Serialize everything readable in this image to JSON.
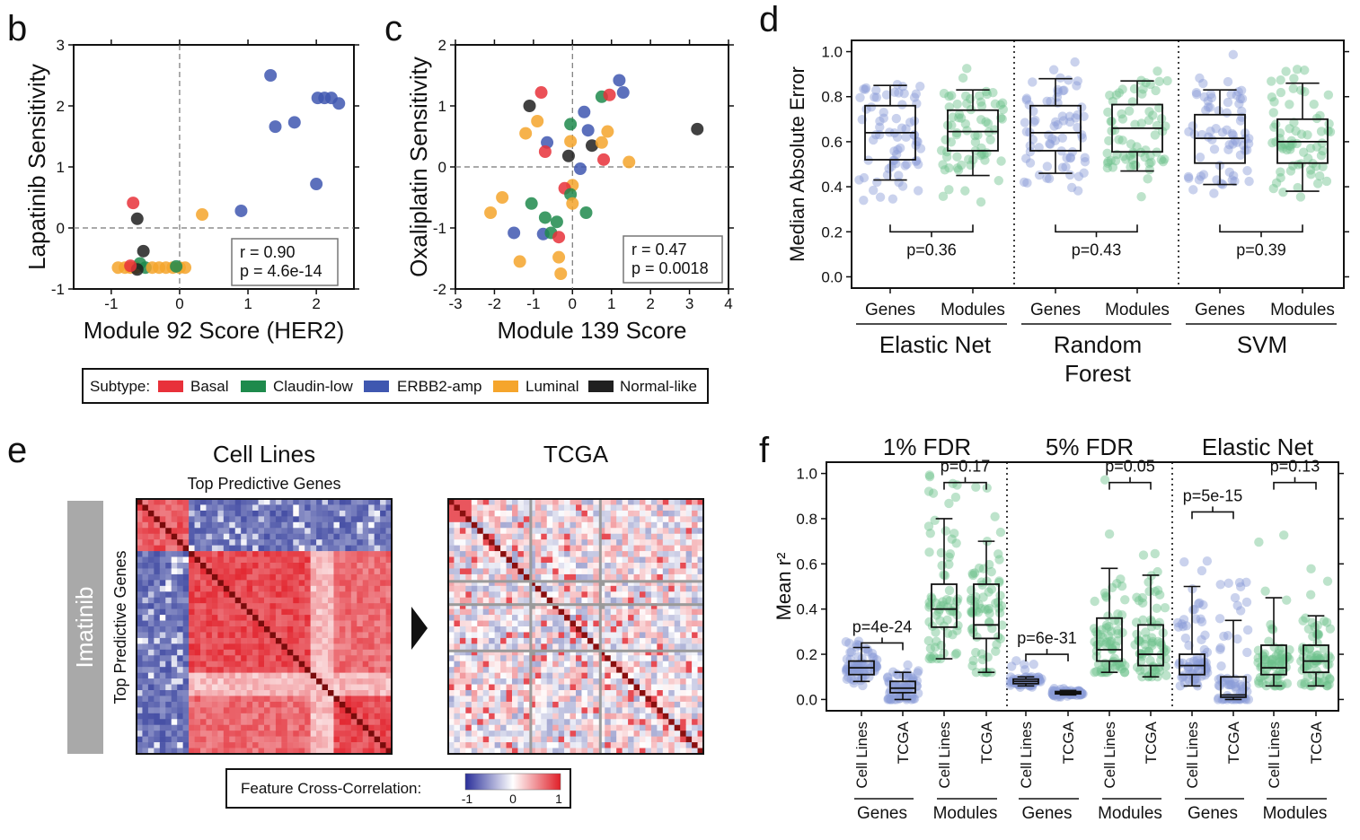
{
  "panel_letters": {
    "b": "b",
    "c": "c",
    "d": "d",
    "e": "e",
    "f": "f"
  },
  "colors": {
    "Basal": "#e8313a",
    "Claudin-low": "#1e8a4c",
    "ERBB2-amp": "#3f57b0",
    "Luminal": "#f5a52c",
    "Normal-like": "#202020",
    "genes_points": "#8a9bd6",
    "modules_points": "#6cc28c"
  },
  "legend": {
    "title": "Subtype:",
    "entries": [
      "Basal",
      "Claudin-low",
      "ERBB2-amp",
      "Luminal",
      "Normal-like"
    ]
  },
  "heatmap": {
    "col_title_1": "Cell Lines",
    "col_subtitle_1": "Top Predictive Genes",
    "col_title_2": "TCGA",
    "row_label": "Top Predictive Genes",
    "drug_label": "Imatinib",
    "colorbar_label": "Feature Cross-Correlation:",
    "colorbar_ticks": [
      "-1",
      "0",
      "1"
    ]
  },
  "chart_data": [
    {
      "id": "b",
      "type": "scatter",
      "xlabel": "Module 92 Score (HER2)",
      "ylabel": "Lapatinib Sensitivity",
      "xlim": [
        -1.55,
        2.55
      ],
      "ylim": [
        -1,
        3
      ],
      "xticks": [
        "-1",
        "0",
        "1",
        "2"
      ],
      "yticks": [
        "-1",
        "0",
        "1",
        "2",
        "3"
      ],
      "stats": [
        "r = 0.90",
        "p = 4.6e-14"
      ],
      "points": [
        {
          "x": 1.33,
          "y": 2.5,
          "s": "ERBB2-amp"
        },
        {
          "x": 1.4,
          "y": 1.66,
          "s": "ERBB2-amp"
        },
        {
          "x": 1.68,
          "y": 1.73,
          "s": "ERBB2-amp"
        },
        {
          "x": 2.02,
          "y": 2.13,
          "s": "ERBB2-amp"
        },
        {
          "x": 2.12,
          "y": 2.13,
          "s": "ERBB2-amp"
        },
        {
          "x": 2.22,
          "y": 2.13,
          "s": "ERBB2-amp"
        },
        {
          "x": 2.33,
          "y": 2.04,
          "s": "ERBB2-amp"
        },
        {
          "x": 2.0,
          "y": 0.72,
          "s": "ERBB2-amp"
        },
        {
          "x": 0.9,
          "y": 0.28,
          "s": "ERBB2-amp"
        },
        {
          "x": 0.33,
          "y": 0.22,
          "s": "Luminal"
        },
        {
          "x": -0.68,
          "y": 0.41,
          "s": "Basal"
        },
        {
          "x": -0.62,
          "y": 0.15,
          "s": "Normal-like"
        },
        {
          "x": -0.53,
          "y": -0.38,
          "s": "Normal-like"
        },
        {
          "x": -0.9,
          "y": -0.65,
          "s": "Luminal"
        },
        {
          "x": -0.8,
          "y": -0.65,
          "s": "Luminal"
        },
        {
          "x": -0.72,
          "y": -0.65,
          "s": "Luminal"
        },
        {
          "x": -0.64,
          "y": -0.65,
          "s": "Luminal"
        },
        {
          "x": -0.58,
          "y": -0.58,
          "s": "Claudin-low"
        },
        {
          "x": -0.5,
          "y": -0.65,
          "s": "Claudin-low"
        },
        {
          "x": -0.4,
          "y": -0.65,
          "s": "Luminal"
        },
        {
          "x": -0.3,
          "y": -0.65,
          "s": "Luminal"
        },
        {
          "x": -0.2,
          "y": -0.65,
          "s": "Luminal"
        },
        {
          "x": -0.1,
          "y": -0.65,
          "s": "Luminal"
        },
        {
          "x": 0.0,
          "y": -0.65,
          "s": "Luminal"
        },
        {
          "x": 0.08,
          "y": -0.65,
          "s": "Luminal"
        },
        {
          "x": -0.62,
          "y": -0.68,
          "s": "Normal-like"
        },
        {
          "x": -0.72,
          "y": -0.62,
          "s": "Basal"
        },
        {
          "x": -0.05,
          "y": -0.63,
          "s": "Claudin-low"
        }
      ]
    },
    {
      "id": "c",
      "type": "scatter",
      "xlabel": "Module 139 Score",
      "ylabel": "Oxaliplatin Sensitivity",
      "xlim": [
        -3,
        4
      ],
      "ylim": [
        -2,
        2
      ],
      "xticks": [
        "-3",
        "-2",
        "-1",
        "0",
        "1",
        "2",
        "3",
        "4"
      ],
      "yticks": [
        "-2",
        "-1",
        "0",
        "1",
        "2"
      ],
      "stats": [
        "r = 0.47",
        "p = 0.0018"
      ],
      "points": [
        {
          "x": -0.8,
          "y": 1.22,
          "s": "Basal"
        },
        {
          "x": -1.1,
          "y": 1.0,
          "s": "Normal-like"
        },
        {
          "x": -0.9,
          "y": 0.75,
          "s": "Luminal"
        },
        {
          "x": -1.2,
          "y": 0.55,
          "s": "Luminal"
        },
        {
          "x": -0.65,
          "y": 0.4,
          "s": "ERBB2-amp"
        },
        {
          "x": -0.7,
          "y": 0.25,
          "s": "Basal"
        },
        {
          "x": -0.05,
          "y": 0.7,
          "s": "Claudin-low"
        },
        {
          "x": 0.3,
          "y": 0.9,
          "s": "ERBB2-amp"
        },
        {
          "x": 0.4,
          "y": 0.6,
          "s": "ERBB2-amp"
        },
        {
          "x": -0.05,
          "y": 0.42,
          "s": "Luminal"
        },
        {
          "x": -0.1,
          "y": 0.18,
          "s": "Normal-like"
        },
        {
          "x": 0.5,
          "y": 0.35,
          "s": "Normal-like"
        },
        {
          "x": 0.75,
          "y": 0.4,
          "s": "Luminal"
        },
        {
          "x": 0.9,
          "y": 0.58,
          "s": "Luminal"
        },
        {
          "x": 0.75,
          "y": 1.15,
          "s": "Claudin-low"
        },
        {
          "x": 0.95,
          "y": 1.18,
          "s": "Basal"
        },
        {
          "x": 1.2,
          "y": 1.42,
          "s": "ERBB2-amp"
        },
        {
          "x": 1.3,
          "y": 1.22,
          "s": "ERBB2-amp"
        },
        {
          "x": 0.8,
          "y": 0.12,
          "s": "Basal"
        },
        {
          "x": 1.45,
          "y": 0.08,
          "s": "Luminal"
        },
        {
          "x": 3.2,
          "y": 0.62,
          "s": "Normal-like"
        },
        {
          "x": 0.2,
          "y": -0.03,
          "s": "ERBB2-amp"
        },
        {
          "x": 0.0,
          "y": -0.3,
          "s": "Luminal"
        },
        {
          "x": -0.2,
          "y": -0.35,
          "s": "Basal"
        },
        {
          "x": -0.05,
          "y": -0.45,
          "s": "Claudin-low"
        },
        {
          "x": -1.05,
          "y": -0.6,
          "s": "Claudin-low"
        },
        {
          "x": -1.8,
          "y": -0.5,
          "s": "Luminal"
        },
        {
          "x": -2.1,
          "y": -0.75,
          "s": "Luminal"
        },
        {
          "x": -0.7,
          "y": -0.83,
          "s": "Claudin-low"
        },
        {
          "x": -0.4,
          "y": -0.9,
          "s": "Claudin-low"
        },
        {
          "x": 0.35,
          "y": -0.75,
          "s": "Claudin-low"
        },
        {
          "x": -1.5,
          "y": -1.08,
          "s": "ERBB2-amp"
        },
        {
          "x": -0.75,
          "y": -1.1,
          "s": "ERBB2-amp"
        },
        {
          "x": -0.55,
          "y": -1.08,
          "s": "Claudin-low"
        },
        {
          "x": -0.35,
          "y": -1.15,
          "s": "Basal"
        },
        {
          "x": -1.35,
          "y": -1.55,
          "s": "Luminal"
        },
        {
          "x": -0.35,
          "y": -1.48,
          "s": "Luminal"
        },
        {
          "x": -0.3,
          "y": -1.75,
          "s": "Luminal"
        },
        {
          "x": 0.0,
          "y": -0.6,
          "s": "Luminal"
        }
      ]
    },
    {
      "id": "d",
      "type": "box",
      "ylabel": "Median Absolute Error",
      "ylim": [
        -0.05,
        1.05
      ],
      "yticks": [
        "0.0",
        "0.2",
        "0.4",
        "0.6",
        "0.8",
        "1.0"
      ],
      "groups": [
        "Elastic Net",
        "Random Forest",
        "SVM"
      ],
      "categories": [
        "Genes",
        "Modules",
        "Genes",
        "Modules",
        "Genes",
        "Modules"
      ],
      "pvalues": [
        "p=0.36",
        "p=0.43",
        "p=0.39"
      ],
      "boxes": [
        {
          "group": "Elastic Net",
          "cat": "Genes",
          "whislo": 0.43,
          "q1": 0.52,
          "med": 0.64,
          "q3": 0.76,
          "whishi": 0.85,
          "pmin": 0.31,
          "pmax": 0.94
        },
        {
          "group": "Elastic Net",
          "cat": "Modules",
          "whislo": 0.45,
          "q1": 0.56,
          "med": 0.645,
          "q3": 0.74,
          "whishi": 0.83,
          "pmin": 0.32,
          "pmax": 0.98
        },
        {
          "group": "Random Forest",
          "cat": "Genes",
          "whislo": 0.46,
          "q1": 0.56,
          "med": 0.64,
          "q3": 0.76,
          "whishi": 0.88,
          "pmin": 0.37,
          "pmax": 0.99
        },
        {
          "group": "Random Forest",
          "cat": "Modules",
          "whislo": 0.47,
          "q1": 0.555,
          "med": 0.66,
          "q3": 0.765,
          "whishi": 0.87,
          "pmin": 0.33,
          "pmax": 0.93
        },
        {
          "group": "SVM",
          "cat": "Genes",
          "whislo": 0.41,
          "q1": 0.505,
          "med": 0.615,
          "q3": 0.72,
          "whishi": 0.83,
          "pmin": 0.31,
          "pmax": 0.99
        },
        {
          "group": "SVM",
          "cat": "Modules",
          "whislo": 0.38,
          "q1": 0.505,
          "med": 0.6,
          "q3": 0.7,
          "whishi": 0.86,
          "pmin": 0.32,
          "pmax": 0.95
        }
      ]
    },
    {
      "id": "f",
      "type": "box",
      "ylabel": "Mean r²",
      "ylim": [
        -0.05,
        1.05
      ],
      "yticks": [
        "0.0",
        "0.2",
        "0.4",
        "0.6",
        "0.8",
        "1.0"
      ],
      "panels": [
        "1% FDR",
        "5% FDR",
        "Elastic Net"
      ],
      "subgroups": [
        "Genes",
        "Modules",
        "Genes",
        "Modules",
        "Genes",
        "Modules"
      ],
      "categories": [
        "Cell Lines",
        "TCGA",
        "Cell Lines",
        "TCGA",
        "Cell Lines",
        "TCGA",
        "Cell Lines",
        "TCGA",
        "Cell Lines",
        "TCGA",
        "Cell Lines",
        "TCGA"
      ],
      "pvalues": [
        "p=4e-24",
        "p=0.17",
        "p=6e-31",
        "p=0.05",
        "p=5e-15",
        "p=0.13"
      ],
      "boxes": [
        {
          "panel": "1% FDR",
          "sub": "Genes",
          "cat": "Cell Lines",
          "whislo": 0.08,
          "q1": 0.11,
          "med": 0.14,
          "q3": 0.17,
          "whishi": 0.23,
          "pmin": 0.06,
          "pmax": 0.28
        },
        {
          "panel": "1% FDR",
          "sub": "Genes",
          "cat": "TCGA",
          "whislo": 0.0,
          "q1": 0.03,
          "med": 0.05,
          "q3": 0.08,
          "whishi": 0.12,
          "pmin": 0.0,
          "pmax": 0.17
        },
        {
          "panel": "1% FDR",
          "sub": "Modules",
          "cat": "Cell Lines",
          "whislo": 0.18,
          "q1": 0.32,
          "med": 0.4,
          "q3": 0.51,
          "whishi": 0.8,
          "pmin": 0.18,
          "pmax": 1.0
        },
        {
          "panel": "1% FDR",
          "sub": "Modules",
          "cat": "TCGA",
          "whislo": 0.12,
          "q1": 0.27,
          "med": 0.33,
          "q3": 0.51,
          "whishi": 0.7,
          "pmin": 0.12,
          "pmax": 1.0
        },
        {
          "panel": "5% FDR",
          "sub": "Genes",
          "cat": "Cell Lines",
          "whislo": 0.06,
          "q1": 0.07,
          "med": 0.08,
          "q3": 0.09,
          "whishi": 0.1,
          "pmin": 0.05,
          "pmax": 0.18
        },
        {
          "panel": "5% FDR",
          "sub": "Genes",
          "cat": "TCGA",
          "whislo": 0.02,
          "q1": 0.025,
          "med": 0.03,
          "q3": 0.035,
          "whishi": 0.04,
          "pmin": 0.01,
          "pmax": 0.05
        },
        {
          "panel": "5% FDR",
          "sub": "Modules",
          "cat": "Cell Lines",
          "whislo": 0.12,
          "q1": 0.17,
          "med": 0.22,
          "q3": 0.36,
          "whishi": 0.58,
          "pmin": 0.12,
          "pmax": 1.0
        },
        {
          "panel": "5% FDR",
          "sub": "Modules",
          "cat": "TCGA",
          "whislo": 0.1,
          "q1": 0.15,
          "med": 0.2,
          "q3": 0.33,
          "whishi": 0.55,
          "pmin": 0.1,
          "pmax": 0.73
        },
        {
          "panel": "Elastic Net",
          "sub": "Genes",
          "cat": "Cell Lines",
          "whislo": 0.06,
          "q1": 0.11,
          "med": 0.15,
          "q3": 0.2,
          "whishi": 0.5,
          "pmin": 0.06,
          "pmax": 0.73
        },
        {
          "panel": "Elastic Net",
          "sub": "Genes",
          "cat": "TCGA",
          "whislo": 0.0,
          "q1": 0.01,
          "med": 0.02,
          "q3": 0.1,
          "whishi": 0.35,
          "pmin": 0.0,
          "pmax": 0.57
        },
        {
          "panel": "Elastic Net",
          "sub": "Modules",
          "cat": "Cell Lines",
          "whislo": 0.06,
          "q1": 0.11,
          "med": 0.14,
          "q3": 0.24,
          "whishi": 0.45,
          "pmin": 0.06,
          "pmax": 0.83
        },
        {
          "panel": "Elastic Net",
          "sub": "Modules",
          "cat": "TCGA",
          "whislo": 0.06,
          "q1": 0.12,
          "med": 0.17,
          "q3": 0.24,
          "whishi": 0.37,
          "pmin": 0.06,
          "pmax": 0.81
        }
      ]
    }
  ]
}
